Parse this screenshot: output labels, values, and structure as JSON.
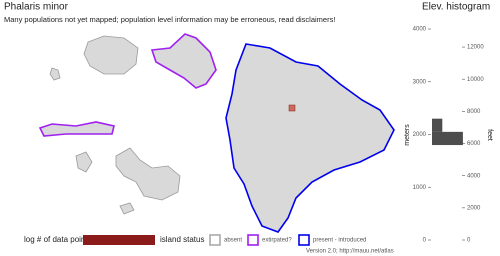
{
  "title": "Phalaris minor",
  "subtitle": "Many populations not yet mapped; population level information may be erroneous, read disclaimers!",
  "histogram": {
    "title": "Elev. histogram",
    "y_label": "meters",
    "y2_label": "feet",
    "ylim": [
      0,
      4000
    ],
    "yticks": [
      0,
      1000,
      2000,
      3000,
      4000
    ],
    "y2lim": [
      0,
      13123
    ],
    "y2ticks": [
      0,
      2000,
      4000,
      6000,
      8000,
      10000,
      12000
    ],
    "bins": [
      1800,
      2050,
      2300
    ],
    "counts": [
      3,
      1
    ],
    "color": "#4d4d4d"
  },
  "legend": {
    "points_label": "log # of data points",
    "points_color": "#8b1a1a",
    "status_label": "island status",
    "items": [
      {
        "label": "absent",
        "color": "#aaaaaa"
      },
      {
        "label": "extirpated?",
        "color": "#a020f0"
      },
      {
        "label": "present - introduced",
        "color": "#0000ee"
      }
    ]
  },
  "footer": "Version 2.0; http://mauu.net/atlas"
}
